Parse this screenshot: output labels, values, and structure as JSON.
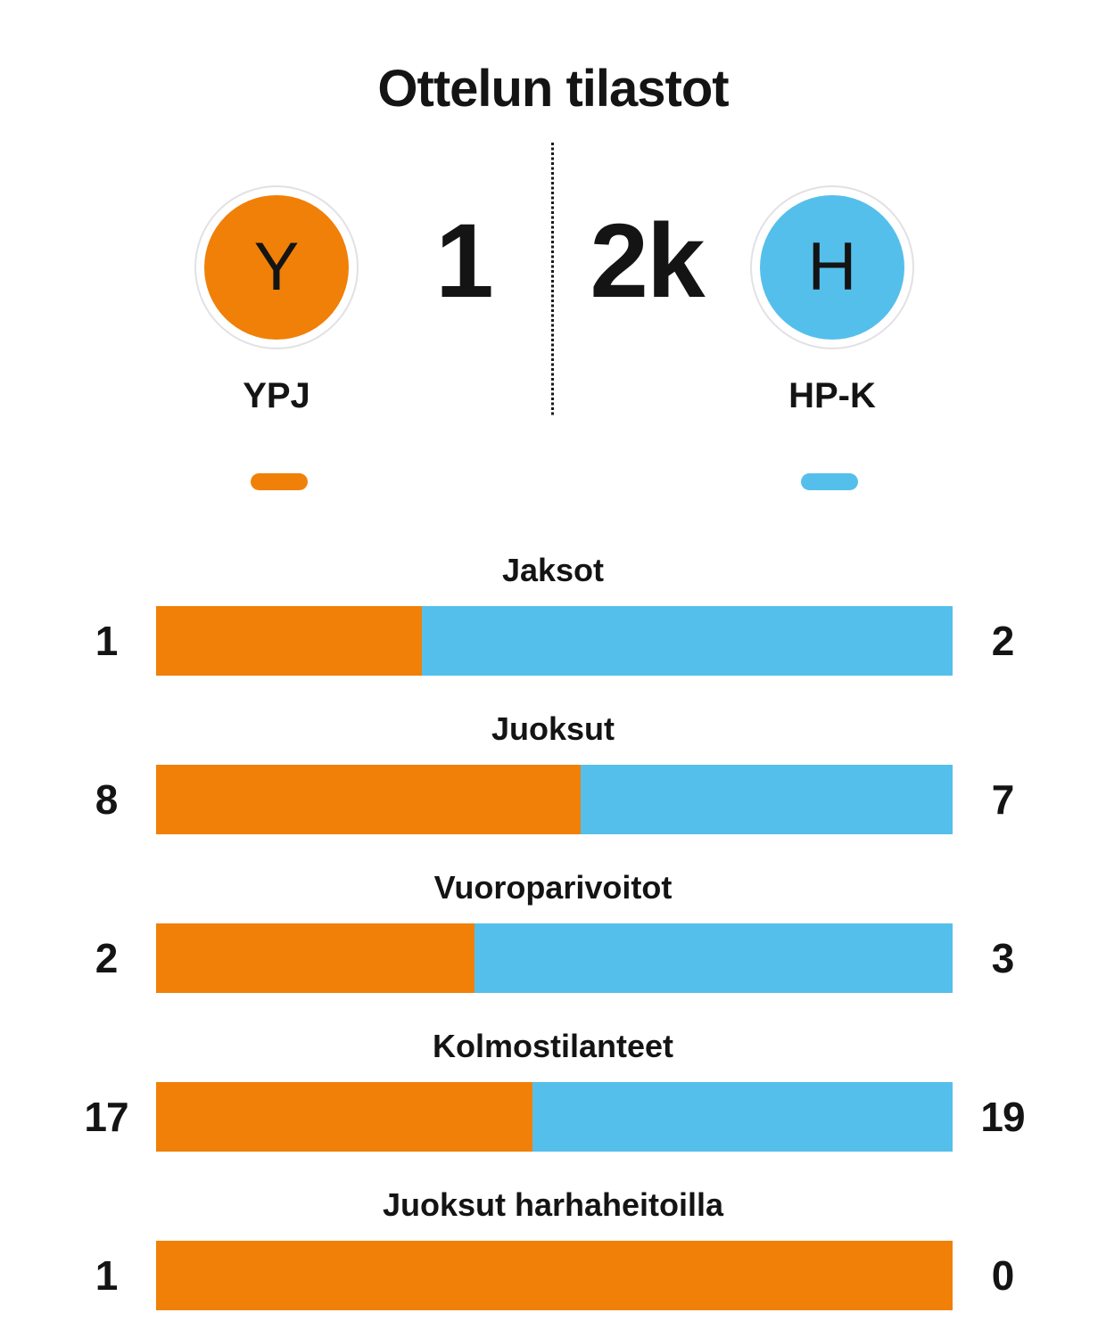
{
  "title": "Ottelun tilastot",
  "teams": {
    "home": {
      "letter": "Y",
      "name": "YPJ",
      "score": "1"
    },
    "away": {
      "letter": "H",
      "name": "HP-K",
      "score": "2k"
    }
  },
  "colors": {
    "home": "#F08008",
    "away": "#55BFEB"
  },
  "chart_data": {
    "type": "bar",
    "subtype": "stacked-comparison-horizontal",
    "title": "Ottelun tilastot",
    "legend": [
      "YPJ",
      "HP-K"
    ],
    "legend_position": "top",
    "categories": [
      "Jaksot",
      "Juoksut",
      "Vuoroparivoitot",
      "Kolmostilanteet",
      "Juoksut harhaheitoilla"
    ],
    "series": [
      {
        "name": "YPJ",
        "color": "#F08008",
        "values": [
          1,
          8,
          2,
          17,
          1
        ]
      },
      {
        "name": "HP-K",
        "color": "#55BFEB",
        "values": [
          2,
          7,
          3,
          19,
          0
        ]
      }
    ]
  }
}
